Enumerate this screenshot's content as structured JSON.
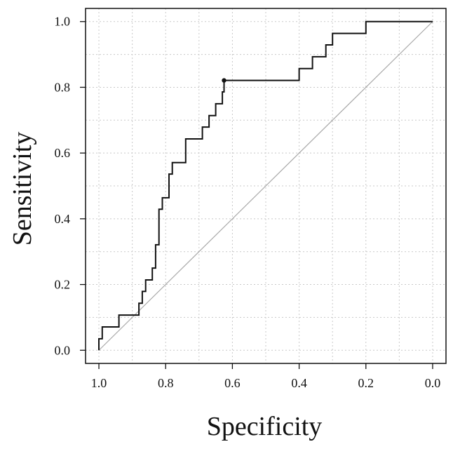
{
  "chart_data": {
    "type": "line",
    "title": "",
    "xlabel": "Specificity",
    "ylabel": "Sensitivity",
    "xlim": [
      1.0,
      0.0
    ],
    "ylim": [
      0.0,
      1.0
    ],
    "x_reversed": true,
    "grid": true,
    "legend": "none",
    "xticks": [
      {
        "value": 1.0,
        "label": "1.0"
      },
      {
        "value": 0.8,
        "label": "0.8"
      },
      {
        "value": 0.6,
        "label": "0.6"
      },
      {
        "value": 0.4,
        "label": "0.4"
      },
      {
        "value": 0.2,
        "label": "0.2"
      },
      {
        "value": 0.0,
        "label": "0.0"
      }
    ],
    "yticks": [
      {
        "value": 0.0,
        "label": "0.0"
      },
      {
        "value": 0.2,
        "label": "0.2"
      },
      {
        "value": 0.4,
        "label": "0.4"
      },
      {
        "value": 0.6,
        "label": "0.6"
      },
      {
        "value": 0.8,
        "label": "0.8"
      },
      {
        "value": 1.0,
        "label": "1.0"
      }
    ],
    "series": [
      {
        "color": "#111111",
        "points": [
          [
            1.0,
            0.0
          ],
          [
            1.0,
            0.035
          ],
          [
            0.99,
            0.035
          ],
          [
            0.99,
            0.071
          ],
          [
            0.94,
            0.071
          ],
          [
            0.94,
            0.107
          ],
          [
            0.88,
            0.107
          ],
          [
            0.88,
            0.143
          ],
          [
            0.87,
            0.143
          ],
          [
            0.87,
            0.179
          ],
          [
            0.86,
            0.179
          ],
          [
            0.86,
            0.214
          ],
          [
            0.84,
            0.214
          ],
          [
            0.84,
            0.25
          ],
          [
            0.83,
            0.25
          ],
          [
            0.83,
            0.321
          ],
          [
            0.82,
            0.321
          ],
          [
            0.82,
            0.429
          ],
          [
            0.81,
            0.429
          ],
          [
            0.81,
            0.464
          ],
          [
            0.79,
            0.464
          ],
          [
            0.79,
            0.536
          ],
          [
            0.78,
            0.536
          ],
          [
            0.78,
            0.571
          ],
          [
            0.74,
            0.571
          ],
          [
            0.74,
            0.643
          ],
          [
            0.69,
            0.643
          ],
          [
            0.69,
            0.679
          ],
          [
            0.67,
            0.679
          ],
          [
            0.67,
            0.714
          ],
          [
            0.65,
            0.714
          ],
          [
            0.65,
            0.75
          ],
          [
            0.63,
            0.75
          ],
          [
            0.63,
            0.786
          ],
          [
            0.625,
            0.786
          ],
          [
            0.625,
            0.821
          ],
          [
            0.4,
            0.821
          ],
          [
            0.4,
            0.857
          ],
          [
            0.36,
            0.857
          ],
          [
            0.36,
            0.893
          ],
          [
            0.32,
            0.893
          ],
          [
            0.32,
            0.929
          ],
          [
            0.3,
            0.929
          ],
          [
            0.3,
            0.964
          ],
          [
            0.2,
            0.964
          ],
          [
            0.2,
            1.0
          ],
          [
            0.0,
            1.0
          ]
        ]
      }
    ],
    "reference_line": {
      "from": [
        1.0,
        0.0
      ],
      "to": [
        0.0,
        1.0
      ],
      "color": "#a8a8a8"
    },
    "highlight_point": {
      "x": 0.625,
      "y": 0.821
    }
  }
}
